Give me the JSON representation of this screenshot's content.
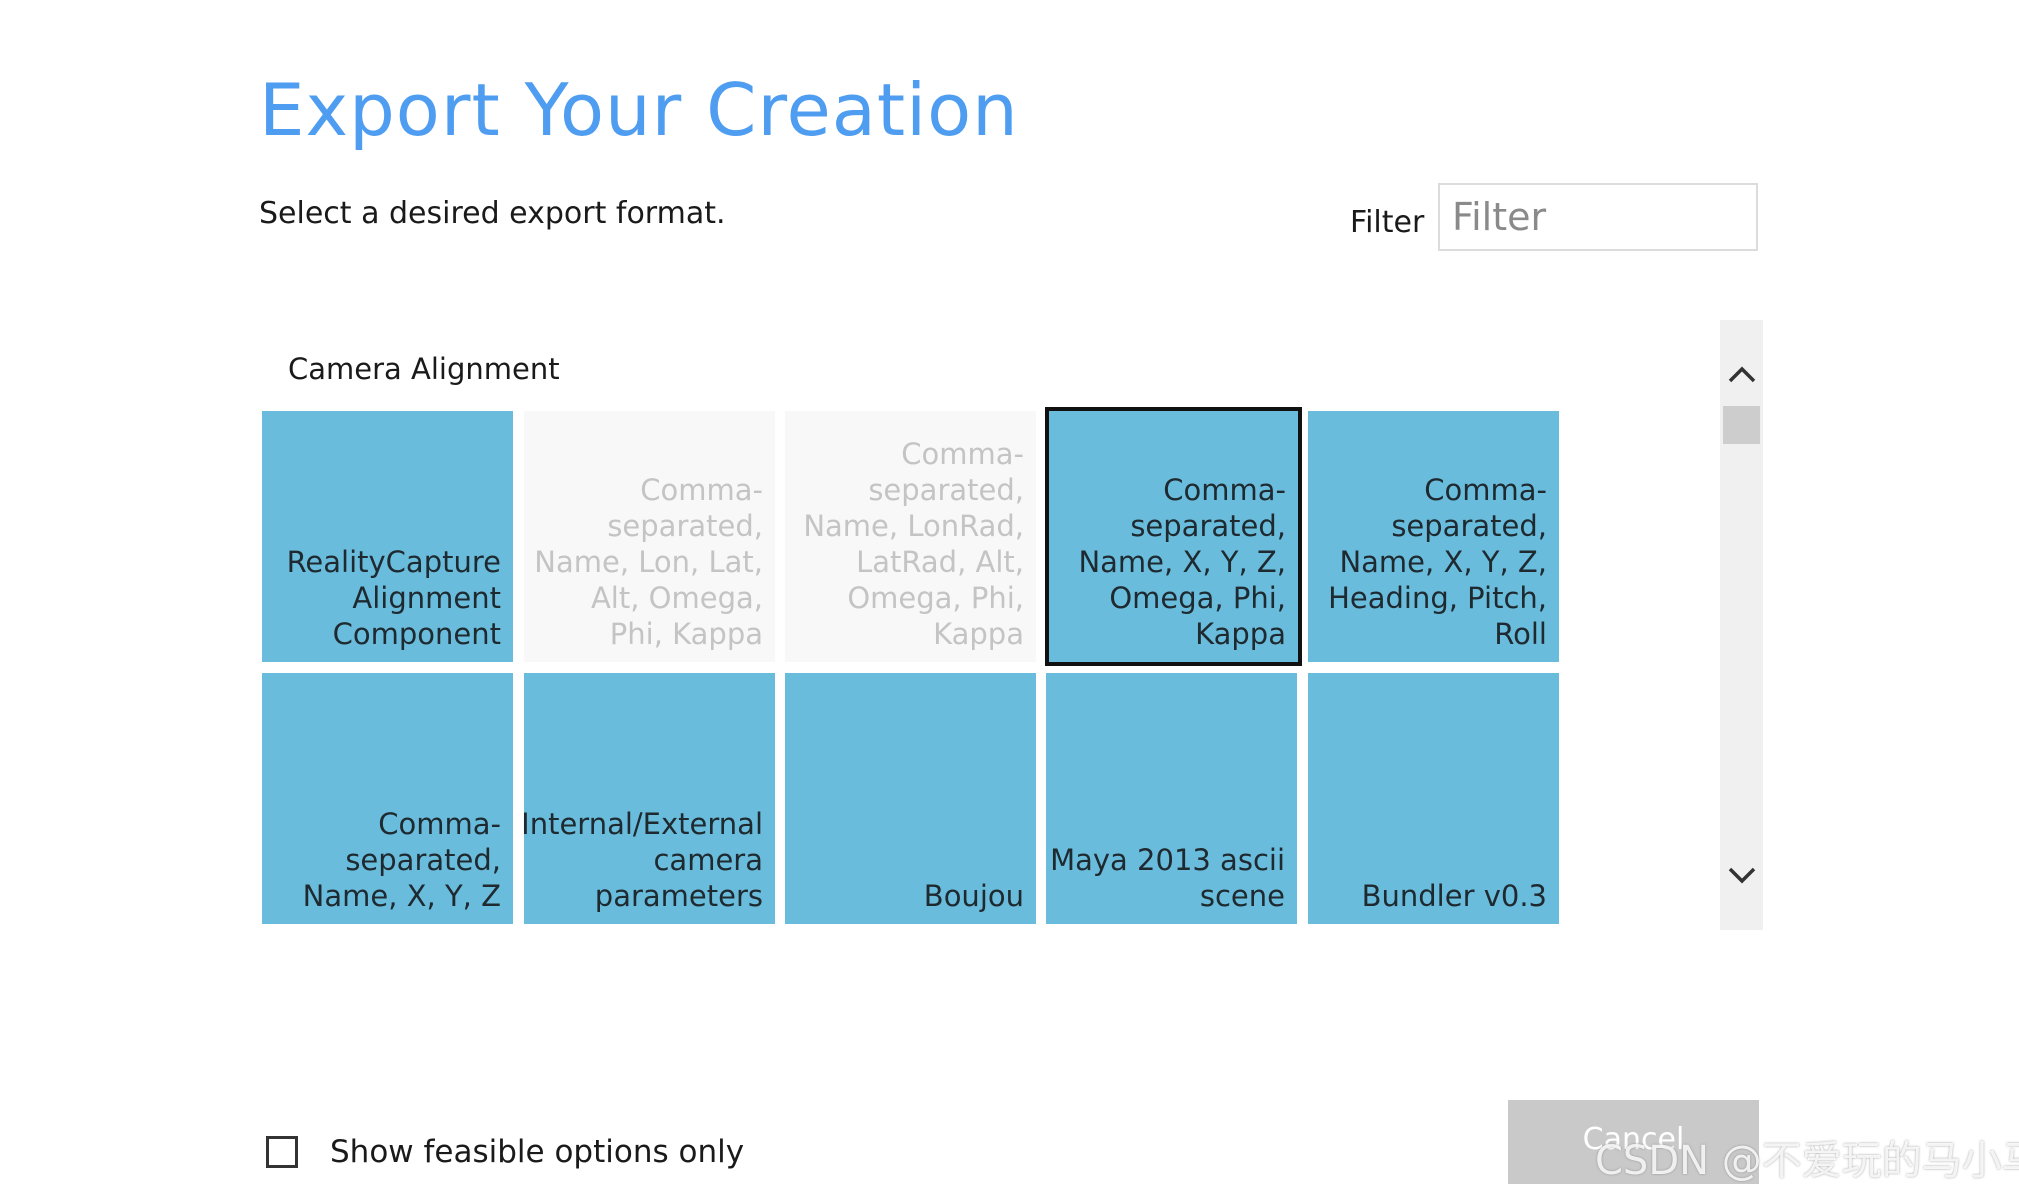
{
  "dialog": {
    "title": "Export Your Creation",
    "subtitle": "Select a desired export format.",
    "filter_label": "Filter",
    "filter_placeholder": "Filter",
    "filter_value": ""
  },
  "section": {
    "title": "Camera Alignment",
    "tiles": [
      {
        "label": "RealityCapture\nAlignment\nComponent",
        "state": "enabled"
      },
      {
        "label": "Comma-\nseparated,\nName, Lon, Lat,\nAlt, Omega,\nPhi, Kappa",
        "state": "disabled"
      },
      {
        "label": "Comma-\nseparated,\nName, LonRad,\nLatRad, Alt,\nOmega, Phi,\nKappa",
        "state": "disabled"
      },
      {
        "label": "Comma-\nseparated,\nName, X, Y, Z,\nOmega, Phi,\nKappa",
        "state": "selected"
      },
      {
        "label": "Comma-\nseparated,\nName, X, Y, Z,\nHeading, Pitch,\nRoll",
        "state": "enabled"
      },
      {
        "label": "Comma-\nseparated,\nName, X, Y, Z",
        "state": "enabled"
      },
      {
        "label": "Internal/External\ncamera\nparameters",
        "state": "enabled"
      },
      {
        "label": "Boujou",
        "state": "enabled"
      },
      {
        "label": "Maya 2013 ascii\nscene",
        "state": "enabled"
      },
      {
        "label": "Bundler v0.3",
        "state": "enabled"
      }
    ]
  },
  "footer": {
    "feasible_checkbox_label": "Show feasible options only",
    "feasible_checked": false,
    "cancel_label": "Cancel"
  },
  "watermark": "CSDN @不爱玩的马小马",
  "colors": {
    "title": "#4f9df0",
    "tile": "#6abcdc",
    "tile_disabled": "#f8f8f8",
    "cancel_bg": "#c9c9c9",
    "scrollbar_track": "#f0f0f0"
  },
  "icons": {
    "scroll_up": "chevron-up-icon",
    "scroll_down": "chevron-down-icon"
  }
}
